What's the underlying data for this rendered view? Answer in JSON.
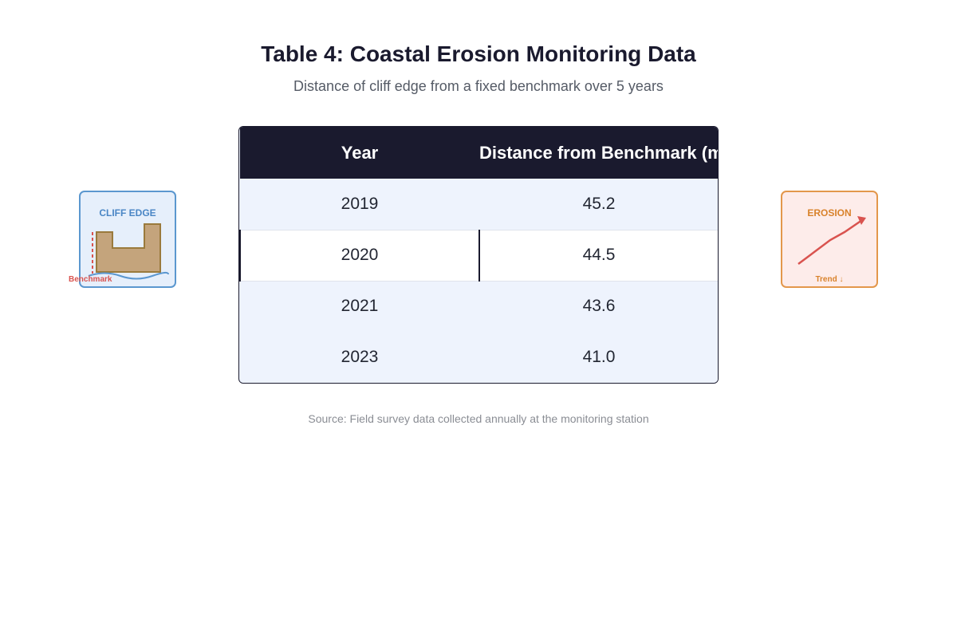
{
  "chart_data": {
    "type": "table",
    "title": "Table 4: Coastal Erosion Monitoring Data",
    "subtitle": "Distance of cliff edge from a fixed benchmark over 5 years",
    "columns": [
      "Year",
      "Distance from Benchmark (m)"
    ],
    "rows": [
      [
        "2019",
        "45.2"
      ],
      [
        "2020",
        "44.5"
      ],
      [
        "2021",
        "43.6"
      ],
      [
        "2023",
        "41.0"
      ]
    ],
    "source": "Source: Field survey data collected annually at the monitoring station"
  },
  "cliff_card": {
    "label": "CLIFF EDGE",
    "benchmark_label": "Benchmark",
    "icon": "cliff-edge-icon"
  },
  "erosion_card": {
    "label": "EROSION",
    "trend_label": "Trend ↓",
    "icon": "erosion-trend-icon"
  },
  "colors": {
    "header_bg": "#1a1a2e",
    "row_shade": "#eef3fd",
    "cliff_accent": "#5b97cf",
    "erosion_accent": "#e3974b",
    "trend_line": "#d9534f"
  }
}
